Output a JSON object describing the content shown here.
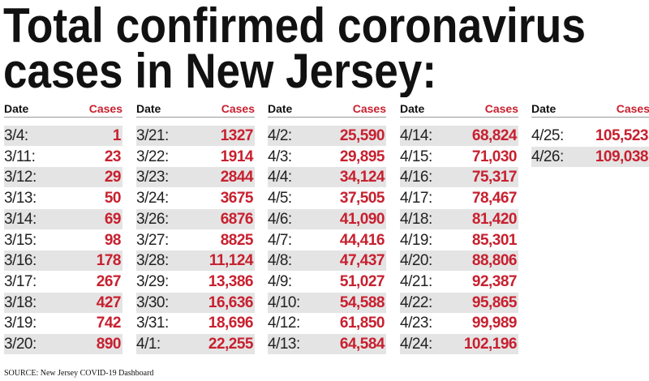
{
  "title": [
    "Total confirmed coronavirus",
    "cases in New Jersey:"
  ],
  "tables": [
    {
      "header": [
        "Date",
        "Cases"
      ],
      "rows": [
        [
          "3/4:",
          "1"
        ],
        [
          "3/11:",
          "23"
        ],
        [
          "3/12:",
          "29"
        ],
        [
          "3/13:",
          "50"
        ],
        [
          "3/14:",
          "69"
        ],
        [
          "3/15:",
          "98"
        ],
        [
          "3/16:",
          "178"
        ],
        [
          "3/17:",
          "267"
        ],
        [
          "3/18:",
          "427"
        ],
        [
          "3/19:",
          "742"
        ],
        [
          "3/20:",
          "890"
        ]
      ]
    },
    {
      "header": [
        "Date",
        "Cases"
      ],
      "rows": [
        [
          "3/21:",
          "1327"
        ],
        [
          "3/22:",
          "1914"
        ],
        [
          "3/23:",
          "2844"
        ],
        [
          "3/24:",
          "3675"
        ],
        [
          "3/26:",
          "6876"
        ],
        [
          "3/27:",
          "8825"
        ],
        [
          "3/28:",
          "11,124"
        ],
        [
          "3/29:",
          "13,386"
        ],
        [
          "3/30:",
          "16,636"
        ],
        [
          "3/31:",
          "18,696"
        ],
        [
          "4/1:",
          "22,255"
        ]
      ]
    },
    {
      "header": [
        "Date",
        "Cases"
      ],
      "rows": [
        [
          "4/2:",
          "25,590"
        ],
        [
          "4/3:",
          "29,895"
        ],
        [
          "4/4:",
          "34,124"
        ],
        [
          "4/5:",
          "37,505"
        ],
        [
          "4/6:",
          "41,090"
        ],
        [
          "4/7:",
          "44,416"
        ],
        [
          "4/8:",
          "47,437"
        ],
        [
          "4/9:",
          "51,027"
        ],
        [
          "4/10:",
          "54,588"
        ],
        [
          "4/12:",
          "61,850"
        ],
        [
          "4/13:",
          "64,584"
        ]
      ]
    },
    {
      "header": [
        "Date",
        "Cases"
      ],
      "rows": [
        [
          "4/14:",
          "68,824"
        ],
        [
          "4/15:",
          "71,030"
        ],
        [
          "4/16:",
          "75,317"
        ],
        [
          "4/17:",
          "78,467"
        ],
        [
          "4/18:",
          "81,420"
        ],
        [
          "4/19:",
          "85,301"
        ],
        [
          "4/20:",
          "88,806"
        ],
        [
          "4/21:",
          "92,387"
        ],
        [
          "4/22:",
          "95,865"
        ],
        [
          "4/23:",
          "99,989"
        ],
        [
          "4/24:",
          "102,196"
        ]
      ]
    },
    {
      "header": [
        "Date",
        "Cases"
      ],
      "rows": [
        [
          "4/25:",
          "105,523"
        ],
        [
          "4/26:",
          "109,038"
        ]
      ]
    }
  ],
  "source": "SOURCE: New Jersey COVID-19 Dashboard"
}
